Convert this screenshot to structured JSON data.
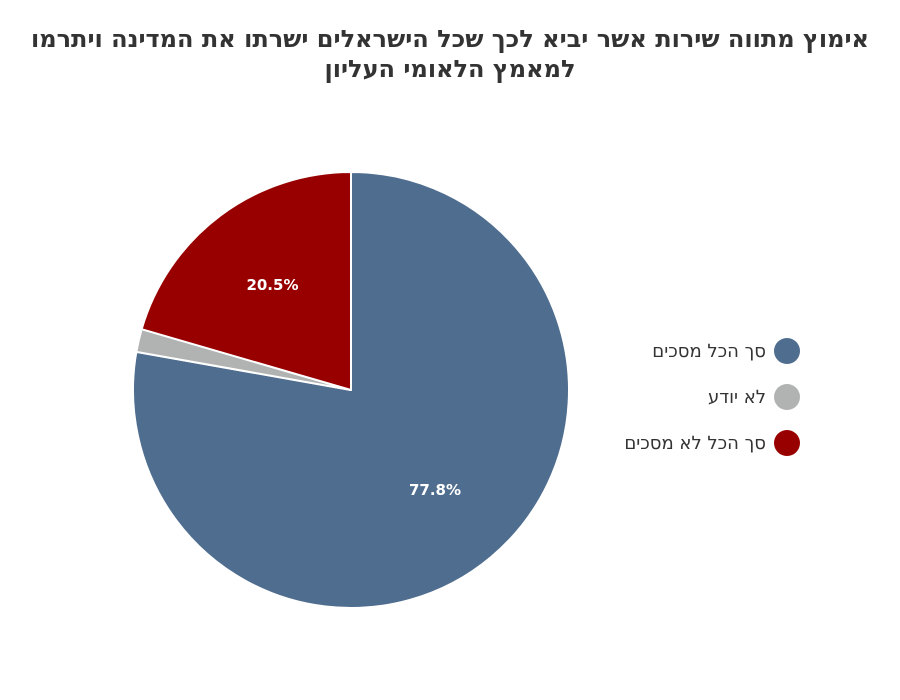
{
  "chart_data": {
    "type": "pie",
    "title": "אימוץ מתווה שירות אשר יביא לכך שכל הישראלים ישרתו את המדינה ויתרמו למאמץ הלאומי העליון",
    "categories": [
      "סך הכל מסכים",
      "לא יודע",
      "סך הכל לא מסכים"
    ],
    "values": [
      77.8,
      1.7,
      20.5
    ],
    "value_labels": [
      "77.8%",
      "",
      "20.5%"
    ],
    "colors": [
      "#4f6d8f",
      "#b0b3b2",
      "#980000"
    ],
    "legend_position": "right",
    "start": "top, clockwise"
  }
}
